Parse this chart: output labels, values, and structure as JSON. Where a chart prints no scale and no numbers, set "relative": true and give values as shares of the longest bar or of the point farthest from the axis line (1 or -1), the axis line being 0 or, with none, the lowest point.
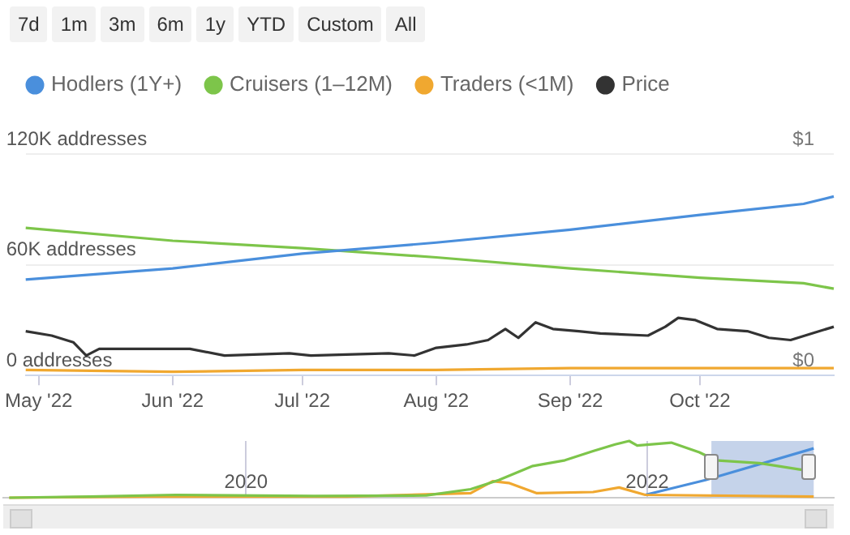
{
  "chart_data": [
    {
      "type": "line",
      "annotations": [
        "7d",
        "1m",
        "3m",
        "6m",
        "1y",
        "YTD",
        "Custom",
        "All"
      ],
      "legend": "top left",
      "grid": "y",
      "marker": "none",
      "line_style": "solid",
      "xlim": [
        "2022-04-28",
        "2022-11-01"
      ],
      "xticks": [
        {
          "value": "2022-05-01",
          "label": "May '22"
        },
        {
          "value": "2022-06-01",
          "label": "Jun '22"
        },
        {
          "value": "2022-07-01",
          "label": "Jul '22"
        },
        {
          "value": "2022-08-01",
          "label": "Aug '22"
        },
        {
          "value": "2022-09-01",
          "label": "Sep '22"
        },
        {
          "value": "2022-10-01",
          "label": "Oct '22"
        }
      ],
      "ylim": [
        0,
        120000
      ],
      "yticks": [
        {
          "value": 0,
          "label": "0 addresses"
        },
        {
          "value": 60000,
          "label": "60K addresses"
        },
        {
          "value": 120000,
          "label": "120K addresses"
        }
      ],
      "y2lim": [
        0,
        1
      ],
      "y2ticks": [
        {
          "value": 0,
          "label": "$0"
        },
        {
          "value": 1,
          "label": "$1"
        }
      ],
      "series": [
        {
          "name": "Hodlers (1Y+)",
          "color": "#4a8fdc",
          "x": [
            "2022-04-28",
            "2022-06-01",
            "2022-07-01",
            "2022-08-01",
            "2022-09-01",
            "2022-10-01",
            "2022-10-25",
            "2022-11-01"
          ],
          "values": [
            52000,
            58000,
            66000,
            72000,
            79000,
            87000,
            93000,
            97000
          ]
        },
        {
          "name": "Cruisers (1–12M)",
          "color": "#7dc54a",
          "x": [
            "2022-04-28",
            "2022-06-01",
            "2022-07-01",
            "2022-08-01",
            "2022-09-01",
            "2022-10-01",
            "2022-10-25",
            "2022-11-01"
          ],
          "values": [
            80000,
            73000,
            69000,
            64000,
            58000,
            53000,
            50000,
            47000
          ]
        },
        {
          "name": "Traders (<1M)",
          "color": "#f0a830",
          "x": [
            "2022-04-28",
            "2022-06-01",
            "2022-07-01",
            "2022-08-01",
            "2022-09-01",
            "2022-10-01",
            "2022-11-01"
          ],
          "values": [
            3000,
            2000,
            3000,
            3000,
            4000,
            4000,
            4000
          ]
        },
        {
          "name": "Price",
          "color": "#333333",
          "axis": "y2",
          "x": [
            "2022-04-28",
            "2022-05-04",
            "2022-05-09",
            "2022-05-12",
            "2022-05-15",
            "2022-06-01",
            "2022-06-05",
            "2022-06-13",
            "2022-06-28",
            "2022-07-03",
            "2022-07-21",
            "2022-07-27",
            "2022-08-01",
            "2022-08-08",
            "2022-08-13",
            "2022-08-17",
            "2022-08-20",
            "2022-08-24",
            "2022-08-28",
            "2022-09-03",
            "2022-09-08",
            "2022-09-19",
            "2022-09-23",
            "2022-09-26",
            "2022-09-30",
            "2022-10-05",
            "2022-10-12",
            "2022-10-17",
            "2022-10-22",
            "2022-10-27",
            "2022-11-01"
          ],
          "values": [
            0.2,
            0.18,
            0.15,
            0.09,
            0.12,
            0.12,
            0.12,
            0.09,
            0.1,
            0.09,
            0.1,
            0.09,
            0.125,
            0.14,
            0.16,
            0.21,
            0.17,
            0.24,
            0.21,
            0.2,
            0.19,
            0.18,
            0.22,
            0.26,
            0.25,
            0.21,
            0.2,
            0.17,
            0.16,
            0.19,
            0.22
          ]
        }
      ]
    },
    {
      "type": "line",
      "relative": true,
      "grid": "x",
      "marker": "none",
      "tick_labels": "x",
      "xlim": [
        2018.79,
        2022.93
      ],
      "xticks": [
        2020,
        2022
      ],
      "bands": [
        {
          "axis": "x",
          "from": 2022.32,
          "to": 2022.83,
          "color": "#c5d3ea"
        }
      ],
      "series": [
        {
          "color": "#7dc54a",
          "x": [
            2018.82,
            2019.22,
            2019.65,
            2020.34,
            2020.9,
            2021.12,
            2021.26,
            2021.43,
            2021.59,
            2021.73,
            2021.84,
            2021.91,
            2021.95,
            2022.12,
            2022.26,
            2022.34,
            2022.56,
            2022.83
          ],
          "values": [
            0.0,
            0.02,
            0.05,
            0.03,
            0.04,
            0.15,
            0.31,
            0.56,
            0.66,
            0.82,
            0.94,
            1.0,
            0.92,
            0.97,
            0.8,
            0.66,
            0.61,
            0.46
          ]
        },
        {
          "color": "#f0a830",
          "x": [
            2018.82,
            2019.5,
            2020.5,
            2021.12,
            2021.23,
            2021.31,
            2021.45,
            2021.73,
            2021.86,
            2021.99,
            2022.83
          ],
          "values": [
            0.0,
            0.02,
            0.02,
            0.08,
            0.29,
            0.26,
            0.08,
            0.1,
            0.18,
            0.05,
            0.02
          ]
        },
        {
          "color": "#4a8fdc",
          "x": [
            2021.99,
            2022.29,
            2022.83
          ],
          "values": [
            0.05,
            0.31,
            0.87
          ]
        }
      ]
    }
  ]
}
